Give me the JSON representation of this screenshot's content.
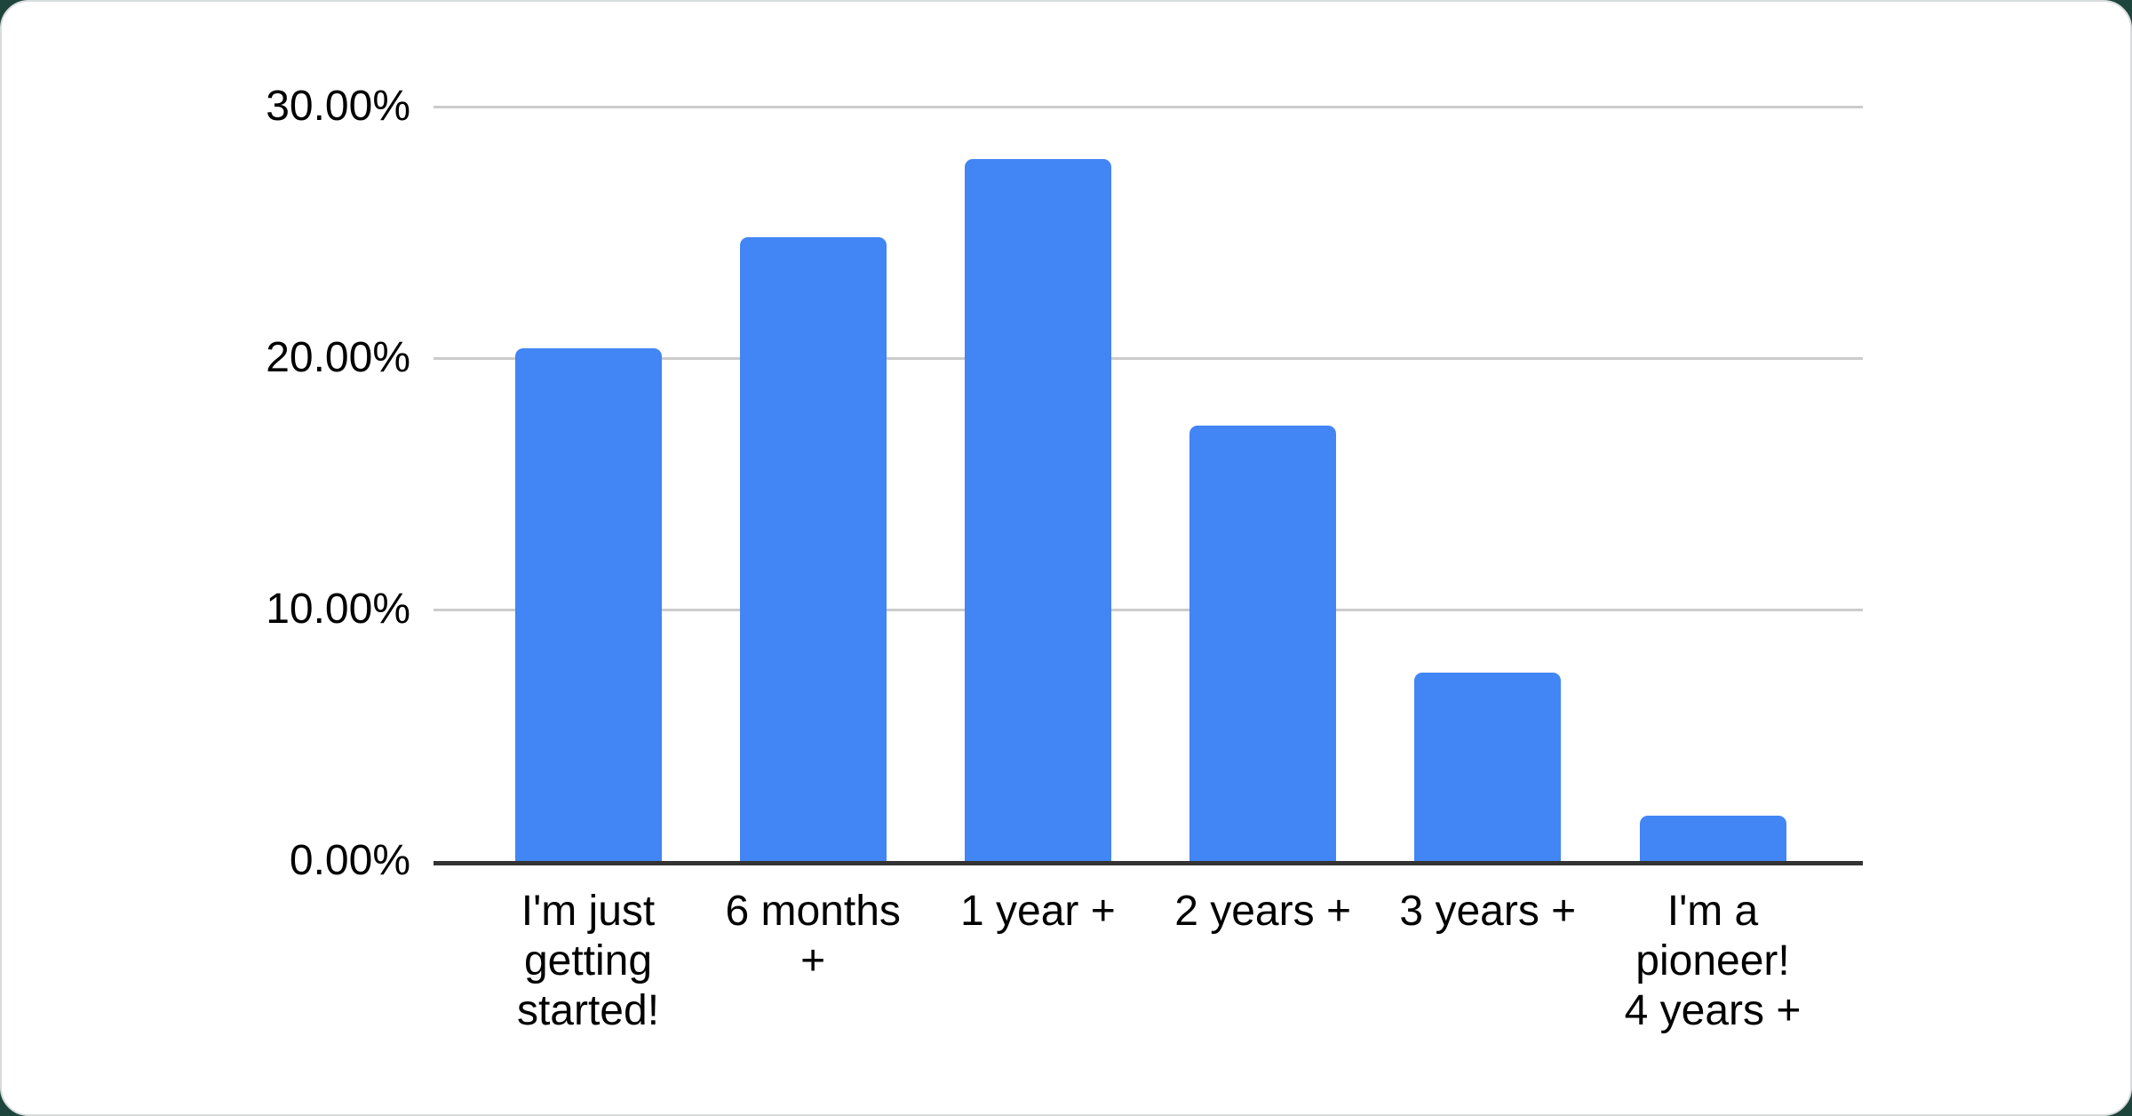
{
  "chart_data": {
    "type": "bar",
    "title": "",
    "xlabel": "",
    "ylabel": "",
    "categories": [
      "I'm just getting started!",
      "6 months +",
      "1 year +",
      "2 years +",
      "3 years +",
      "I'm a pioneer! 4 years +"
    ],
    "category_label_lines": [
      [
        "I'm just",
        "getting",
        "started!"
      ],
      [
        "6 months",
        "+"
      ],
      [
        "1 year +"
      ],
      [
        "2 years +"
      ],
      [
        "3 years +"
      ],
      [
        "I'm a",
        "pioneer!",
        "4 years +"
      ]
    ],
    "values": [
      20.4,
      24.8,
      27.9,
      17.3,
      7.5,
      1.8
    ],
    "value_unit": "percent",
    "ylim": [
      0,
      30
    ],
    "yticks": [
      {
        "value": 0,
        "label": "0.00%"
      },
      {
        "value": 10,
        "label": "10.00%"
      },
      {
        "value": 20,
        "label": "20.00%"
      },
      {
        "value": 30,
        "label": "30.00%"
      }
    ],
    "grid": true,
    "legend_position": "none"
  },
  "colors": {
    "bar": "#4285f4",
    "gridline": "#cccccc",
    "axis_line": "#333333",
    "text": "#000000",
    "card_background": "#ffffff",
    "card_border": "#d8dcdc",
    "page_background": "#1e453c"
  }
}
